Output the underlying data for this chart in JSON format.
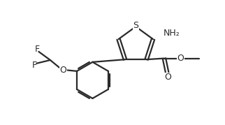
{
  "bg_color": "#ffffff",
  "line_color": "#2a2a2a",
  "line_width": 1.6,
  "figsize": [
    3.22,
    1.79
  ],
  "dpi": 100,
  "S_label": "S",
  "NH2_label": "NH₂",
  "O_label": "O",
  "F_label": "F",
  "xlim": [
    0,
    10
  ],
  "ylim": [
    0,
    5.6
  ]
}
